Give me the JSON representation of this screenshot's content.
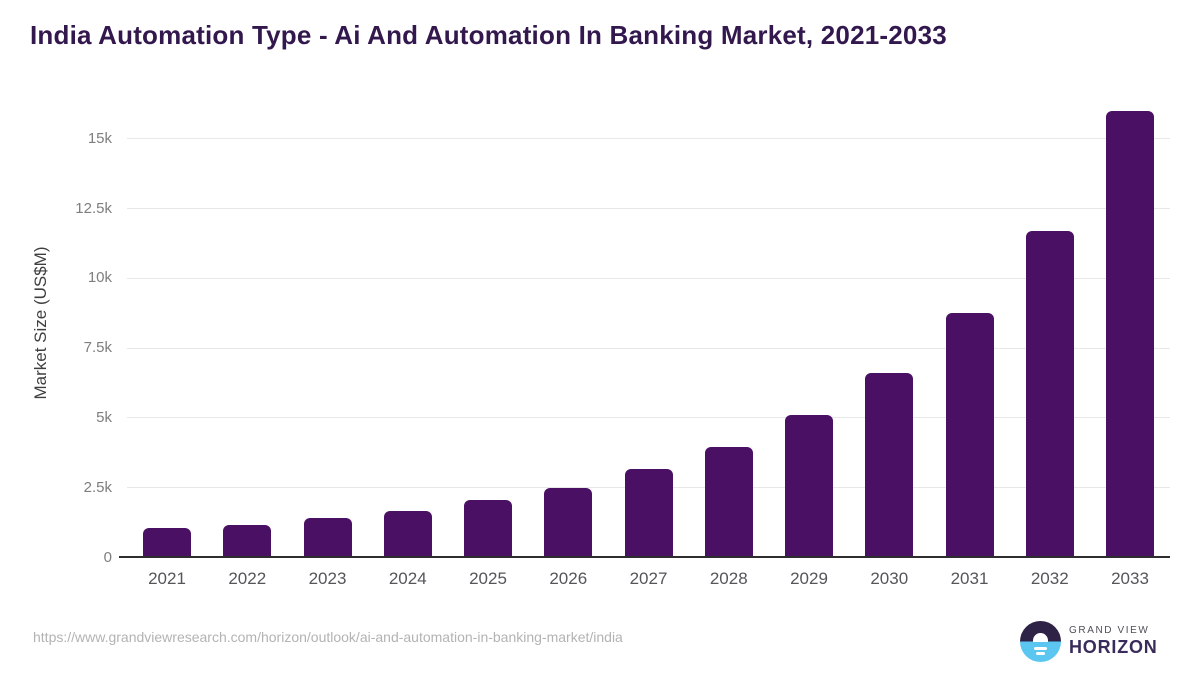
{
  "title": "India Automation Type - Ai And Automation In Banking Market, 2021-2033",
  "chart_data": {
    "type": "bar",
    "title": "India Automation Type - Ai And Automation In Banking Market, 2021-2033",
    "categories": [
      "2021",
      "2022",
      "2023",
      "2024",
      "2025",
      "2026",
      "2027",
      "2028",
      "2029",
      "2030",
      "2031",
      "2032",
      "2033"
    ],
    "values": [
      1050,
      1180,
      1400,
      1680,
      2060,
      2500,
      3160,
      3960,
      5100,
      6620,
      8740,
      11700,
      15980
    ],
    "xlabel": "",
    "ylabel": "Market Size (US$M)",
    "ylim": [
      0,
      16100
    ],
    "yticks": [
      {
        "value": 0,
        "label": "0"
      },
      {
        "value": 2500,
        "label": "2.5k"
      },
      {
        "value": 5000,
        "label": "5k"
      },
      {
        "value": 7500,
        "label": "7.5k"
      },
      {
        "value": 10000,
        "label": "10k"
      },
      {
        "value": 12500,
        "label": "12.5k"
      },
      {
        "value": 15000,
        "label": "15k"
      }
    ],
    "grid": true,
    "legend": false,
    "bar_color": "#4A1063"
  },
  "footer": {
    "source_url": "https://www.grandviewresearch.com/horizon/outlook/ai-and-automation-in-banking-market/india",
    "logo": {
      "brand_line1": "GRAND VIEW",
      "brand_line2": "HORIZON"
    }
  },
  "colors": {
    "bar": "#4A1063",
    "title_text": "#33184E",
    "axis_line": "#2D2D2D",
    "gridline": "#E8E8E8",
    "y_tick_text": "#7E7E7E",
    "x_tick_text": "#55555A",
    "y_axis_title_text": "#3F3F3F",
    "url_text": "#B3B3B3",
    "logo_navy": "#2E2247",
    "logo_blue": "#5BC7F1",
    "logo_text_gray": "#4F4F58",
    "logo_text_purple": "#3A2C5A"
  }
}
